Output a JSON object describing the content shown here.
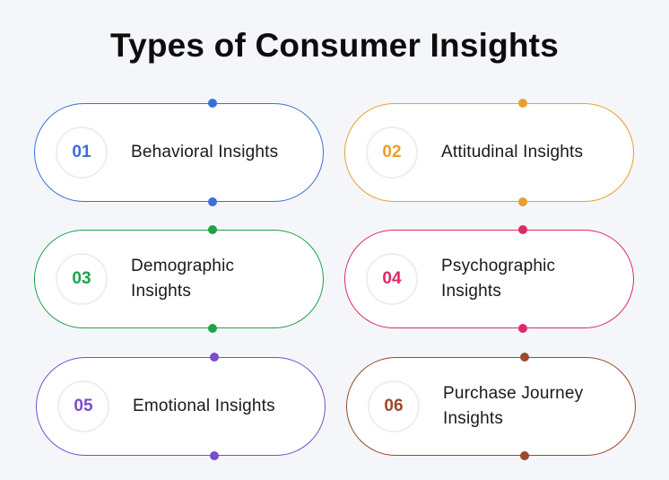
{
  "title": "Types of Consumer Insights",
  "cards": [
    {
      "number": "01",
      "label": "Behavioral Insights",
      "color": "#3b6fd8"
    },
    {
      "number": "02",
      "label": "Attitudinal Insights",
      "color": "#e8a02c"
    },
    {
      "number": "03",
      "label": "Demographic Insights",
      "color": "#1fa34a"
    },
    {
      "number": "04",
      "label": "Psychographic Insights",
      "color": "#dd2a68"
    },
    {
      "number": "05",
      "label": "Emotional Insights",
      "color": "#7b4ccc"
    },
    {
      "number": "06",
      "label": "Purchase Journey Insights",
      "color": "#9a4a2b"
    }
  ]
}
